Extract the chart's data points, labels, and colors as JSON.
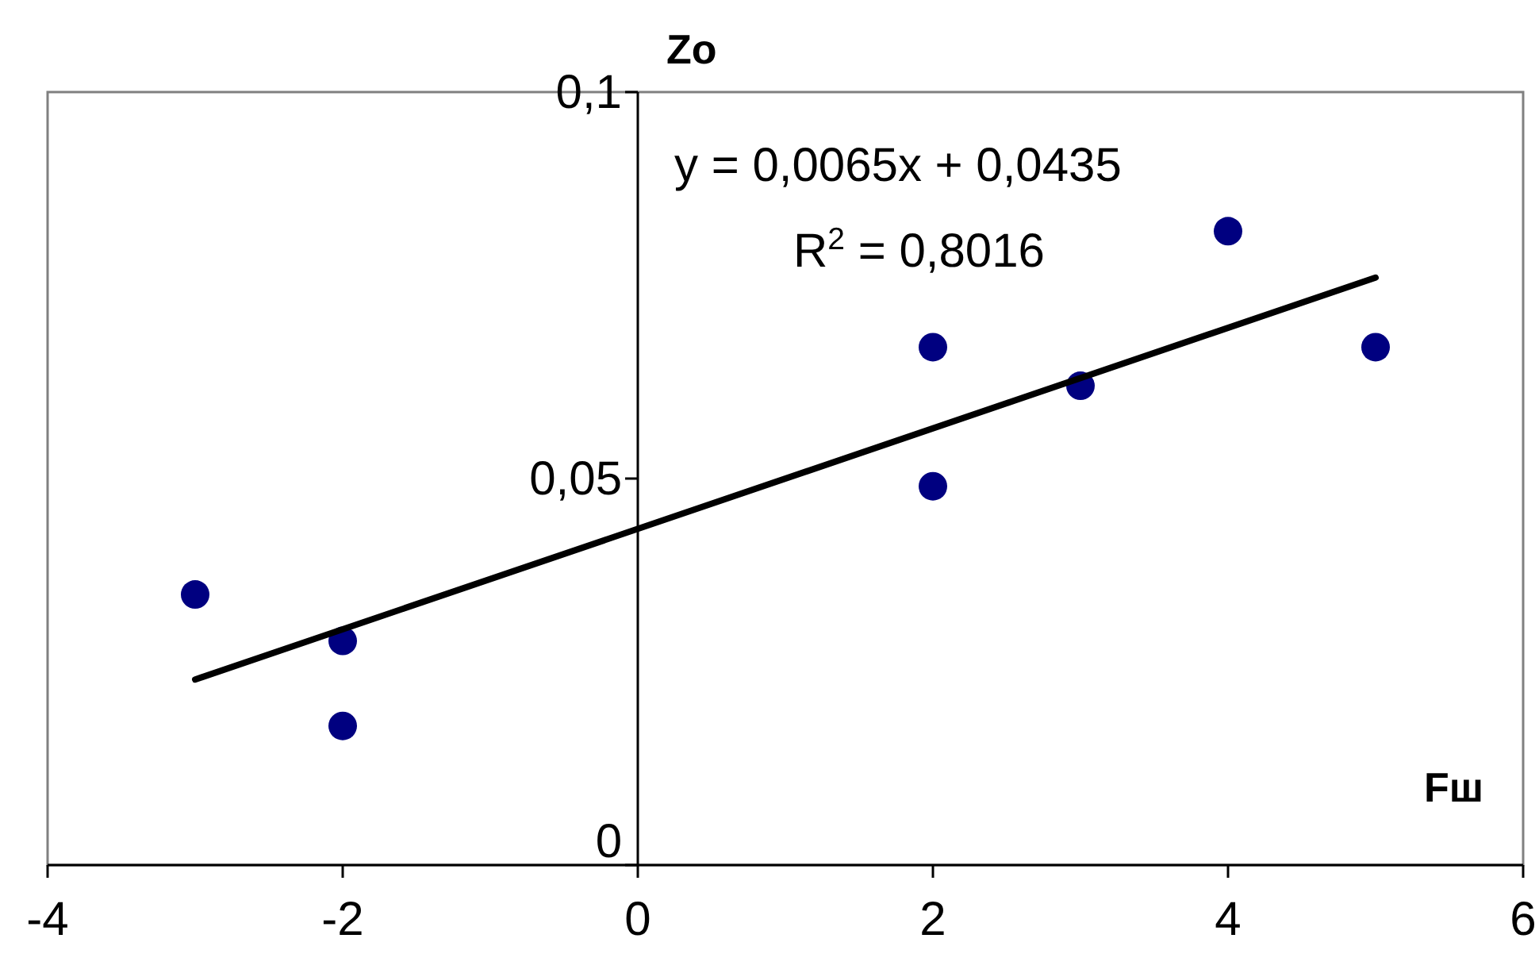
{
  "chart_data": {
    "type": "scatter",
    "xlabel": "Fш",
    "ylabel": "Zo",
    "xlim": [
      -4,
      6
    ],
    "xticks": [
      -4,
      -2,
      0,
      2,
      4,
      6
    ],
    "ylim": [
      0,
      0.1
    ],
    "yticks": [
      0,
      {
        "value": 0.05,
        "label": "0,05"
      },
      {
        "value": 0.1,
        "label": "0,1"
      }
    ],
    "grid": false,
    "marker": "circle",
    "annotations": [
      "y = 0,0065x + 0,0435",
      "R$^{2}$ = 0,8016"
    ],
    "series": [
      {
        "color": "#000080",
        "x": [
          -3,
          -2,
          -2,
          2,
          2,
          3,
          4,
          5
        ],
        "values": [
          0.035,
          0.029,
          0.018,
          0.067,
          0.049,
          0.062,
          0.082,
          0.067
        ]
      },
      {
        "type": "line",
        "color": "#000000",
        "x": [
          -3,
          5
        ],
        "values": [
          0.024,
          0.076
        ],
        "line_style": "solid",
        "marker": "none"
      }
    ]
  }
}
